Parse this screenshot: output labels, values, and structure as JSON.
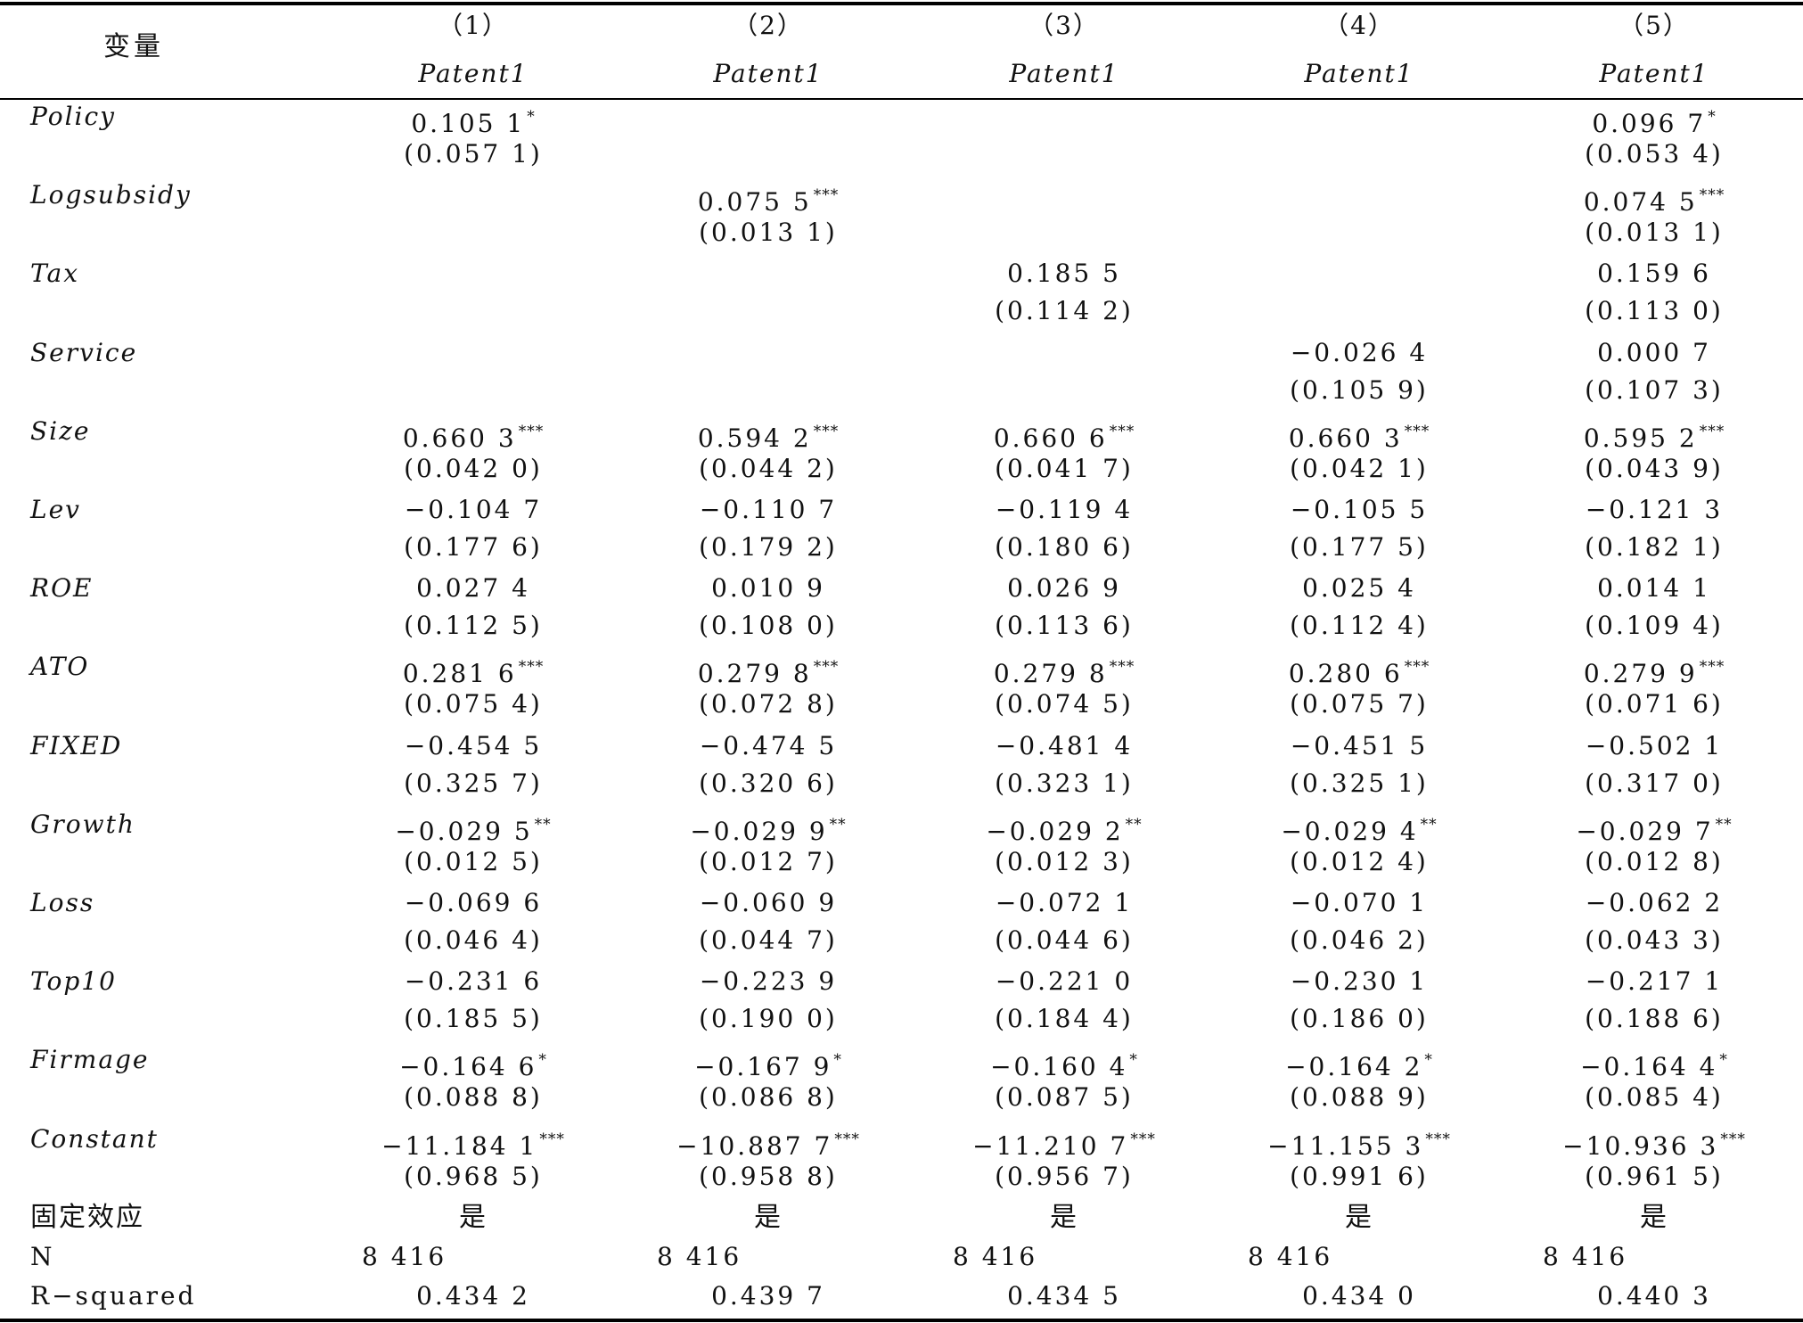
{
  "table": {
    "header": {
      "var_label": "变量",
      "columns": [
        {
          "num": "（1）",
          "dep": "Patent1"
        },
        {
          "num": "（2）",
          "dep": "Patent1"
        },
        {
          "num": "（3）",
          "dep": "Patent1"
        },
        {
          "num": "（4）",
          "dep": "Patent1"
        },
        {
          "num": "（5）",
          "dep": "Patent1"
        }
      ]
    },
    "rows": [
      {
        "label": "Policy",
        "coef": [
          [
            "0.105 1",
            "*"
          ],
          [
            "",
            ""
          ],
          [
            "",
            ""
          ],
          [
            "",
            ""
          ],
          [
            "0.096 7",
            "*"
          ]
        ],
        "se": [
          "(0.057 1)",
          "",
          "",
          "",
          "(0.053 4)"
        ]
      },
      {
        "label": "Logsubsidy",
        "coef": [
          [
            "",
            ""
          ],
          [
            "0.075 5",
            "***"
          ],
          [
            "",
            ""
          ],
          [
            "",
            ""
          ],
          [
            "0.074 5",
            "***"
          ]
        ],
        "se": [
          "",
          "(0.013 1)",
          "",
          "",
          "(0.013 1)"
        ]
      },
      {
        "label": "Tax",
        "coef": [
          [
            "",
            ""
          ],
          [
            "",
            ""
          ],
          [
            "0.185 5",
            ""
          ],
          [
            "",
            ""
          ],
          [
            "0.159 6",
            ""
          ]
        ],
        "se": [
          "",
          "",
          "(0.114 2)",
          "",
          "(0.113 0)"
        ]
      },
      {
        "label": "Service",
        "coef": [
          [
            "",
            ""
          ],
          [
            "",
            ""
          ],
          [
            "",
            ""
          ],
          [
            "−0.026 4",
            ""
          ],
          [
            "0.000 7",
            ""
          ]
        ],
        "se": [
          "",
          "",
          "",
          "(0.105 9)",
          "(0.107 3)"
        ]
      },
      {
        "label": "Size",
        "coef": [
          [
            "0.660 3",
            "***"
          ],
          [
            "0.594 2",
            "***"
          ],
          [
            "0.660 6",
            "***"
          ],
          [
            "0.660 3",
            "***"
          ],
          [
            "0.595 2",
            "***"
          ]
        ],
        "se": [
          "(0.042 0)",
          "(0.044 2)",
          "(0.041 7)",
          "(0.042 1)",
          "(0.043 9)"
        ]
      },
      {
        "label": "Lev",
        "coef": [
          [
            "−0.104 7",
            ""
          ],
          [
            "−0.110 7",
            ""
          ],
          [
            "−0.119 4",
            ""
          ],
          [
            "−0.105 5",
            ""
          ],
          [
            "−0.121 3",
            ""
          ]
        ],
        "se": [
          "(0.177 6)",
          "(0.179 2)",
          "(0.180 6)",
          "(0.177 5)",
          "(0.182 1)"
        ]
      },
      {
        "label": "ROE",
        "coef": [
          [
            "0.027 4",
            ""
          ],
          [
            "0.010 9",
            ""
          ],
          [
            "0.026 9",
            ""
          ],
          [
            "0.025 4",
            ""
          ],
          [
            "0.014 1",
            ""
          ]
        ],
        "se": [
          "(0.112 5)",
          "(0.108 0)",
          "(0.113 6)",
          "(0.112 4)",
          "(0.109 4)"
        ]
      },
      {
        "label": "ATO",
        "coef": [
          [
            "0.281 6",
            "***"
          ],
          [
            "0.279 8",
            "***"
          ],
          [
            "0.279 8",
            "***"
          ],
          [
            "0.280 6",
            "***"
          ],
          [
            "0.279 9",
            "***"
          ]
        ],
        "se": [
          "(0.075 4)",
          "(0.072 8)",
          "(0.074 5)",
          "(0.075 7)",
          "(0.071 6)"
        ]
      },
      {
        "label": "FIXED",
        "coef": [
          [
            "−0.454 5",
            ""
          ],
          [
            "−0.474 5",
            ""
          ],
          [
            "−0.481 4",
            ""
          ],
          [
            "−0.451 5",
            ""
          ],
          [
            "−0.502 1",
            ""
          ]
        ],
        "se": [
          "(0.325 7)",
          "(0.320 6)",
          "(0.323 1)",
          "(0.325 1)",
          "(0.317 0)"
        ]
      },
      {
        "label": "Growth",
        "coef": [
          [
            "−0.029 5",
            "**"
          ],
          [
            "−0.029 9",
            "**"
          ],
          [
            "−0.029 2",
            "**"
          ],
          [
            "−0.029 4",
            "**"
          ],
          [
            "−0.029 7",
            "**"
          ]
        ],
        "se": [
          "(0.012 5)",
          "(0.012 7)",
          "(0.012 3)",
          "(0.012 4)",
          "(0.012 8)"
        ]
      },
      {
        "label": "Loss",
        "coef": [
          [
            "−0.069 6",
            ""
          ],
          [
            "−0.060 9",
            ""
          ],
          [
            "−0.072 1",
            ""
          ],
          [
            "−0.070 1",
            ""
          ],
          [
            "−0.062 2",
            ""
          ]
        ],
        "se": [
          "(0.046 4)",
          "(0.044 7)",
          "(0.044 6)",
          "(0.046 2)",
          "(0.043 3)"
        ]
      },
      {
        "label": "Top10",
        "coef": [
          [
            "−0.231 6",
            ""
          ],
          [
            "−0.223 9",
            ""
          ],
          [
            "−0.221 0",
            ""
          ],
          [
            "−0.230 1",
            ""
          ],
          [
            "−0.217 1",
            ""
          ]
        ],
        "se": [
          "(0.185 5)",
          "(0.190 0)",
          "(0.184 4)",
          "(0.186 0)",
          "(0.188 6)"
        ]
      },
      {
        "label": "Firmage",
        "coef": [
          [
            "−0.164 6",
            "*"
          ],
          [
            "−0.167 9",
            "*"
          ],
          [
            "−0.160 4",
            "*"
          ],
          [
            "−0.164 2",
            "*"
          ],
          [
            "−0.164 4",
            "*"
          ]
        ],
        "se": [
          "(0.088 8)",
          "(0.086 8)",
          "(0.087 5)",
          "(0.088 9)",
          "(0.085 4)"
        ]
      },
      {
        "label": "Constant",
        "coef": [
          [
            "−11.184 1",
            "***"
          ],
          [
            "−10.887 7",
            "***"
          ],
          [
            "−11.210 7",
            "***"
          ],
          [
            "−11.155 3",
            "***"
          ],
          [
            "−10.936 3",
            "***"
          ]
        ],
        "se": [
          "(0.968 5)",
          "(0.958 8)",
          "(0.956 7)",
          "(0.991 6)",
          "(0.961 5)"
        ]
      }
    ],
    "footer": {
      "fe": {
        "label": "固定效应",
        "values": [
          "是",
          "是",
          "是",
          "是",
          "是"
        ]
      },
      "n": {
        "label": "N",
        "values": [
          "8 416",
          "8 416",
          "8 416",
          "8 416",
          "8 416"
        ]
      },
      "r2": {
        "label": "R−squared",
        "values": [
          "0.434 2",
          "0.439 7",
          "0.434 5",
          "0.434 0",
          "0.440 3"
        ]
      }
    }
  }
}
